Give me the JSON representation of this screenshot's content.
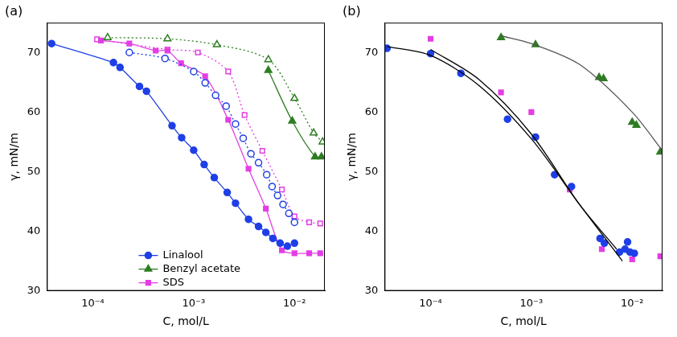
{
  "chart_data": [
    {
      "type": "scatter",
      "title": "(a)",
      "x_label": "C, mol/L",
      "y_label": "γ, mN/m",
      "log": "x",
      "grid": false,
      "legend": "bottom",
      "xlim": [
        3.5e-05,
        0.02
      ],
      "xticks": [
        {
          "value": 0.0001,
          "label": "10⁻⁴"
        },
        {
          "value": 0.001,
          "label": "10⁻³"
        },
        {
          "value": 0.01,
          "label": "10⁻²"
        }
      ],
      "ylim": [
        30,
        75
      ],
      "yticks": [
        30,
        40,
        50,
        60,
        70
      ],
      "series": [
        {
          "name": "Linalool",
          "color": "#1f3fe6",
          "marker": "circle",
          "line_style": "solid",
          "x": [
            3.9e-05,
            0.00016,
            0.000186,
            0.00029,
            0.00034,
            0.00061,
            0.00076,
            0.001,
            0.00127,
            0.0016,
            0.00215,
            0.0026,
            0.0035,
            0.0044,
            0.0052,
            0.0061,
            0.0072,
            0.0085,
            0.01
          ],
          "values": [
            71.5,
            68.3,
            67.5,
            64.3,
            63.5,
            57.7,
            55.7,
            53.6,
            51.2,
            49.0,
            46.5,
            44.7,
            42.0,
            40.8,
            39.8,
            38.8,
            38.0,
            37.5,
            38.0
          ]
        },
        {
          "color": "#1f3fe6",
          "marker": "open_circle",
          "line_style": "dotted",
          "x": [
            0.00023,
            0.00052,
            0.001,
            0.0013,
            0.00165,
            0.0021,
            0.0026,
            0.0031,
            0.0037,
            0.0044,
            0.0053,
            0.006,
            0.0068,
            0.0077,
            0.0088,
            0.01
          ],
          "values": [
            70.0,
            69.0,
            66.8,
            64.9,
            62.8,
            61.0,
            58.0,
            55.6,
            53.0,
            51.5,
            49.5,
            47.5,
            46.0,
            44.5,
            43.0,
            41.5
          ]
        },
        {
          "name": "Benzyl acetate",
          "color": "#2e7d22",
          "marker": "triangle",
          "line_style": "solid",
          "x": [
            0.0055,
            0.0095,
            0.016,
            0.0185
          ],
          "values": [
            67.0,
            58.5,
            52.5,
            52.5
          ]
        },
        {
          "color": "#2e7d22",
          "marker": "open_triangle",
          "line_style": "dotted",
          "x": [
            0.00014,
            0.00055,
            0.0017,
            0.0055,
            0.01,
            0.0155,
            0.019
          ],
          "values": [
            72.5,
            72.3,
            71.3,
            68.8,
            62.3,
            56.5,
            55.0
          ]
        },
        {
          "name": "SDS",
          "color": "#e33ee3",
          "marker": "square",
          "line_style": "solid",
          "x": [
            0.00012,
            0.00023,
            0.00042,
            0.00055,
            0.00075,
            0.0013,
            0.0022,
            0.0035,
            0.0052,
            0.0075,
            0.01,
            0.014,
            0.018
          ],
          "values": [
            72.0,
            71.5,
            70.3,
            70.3,
            68.2,
            66.0,
            58.7,
            50.5,
            43.8,
            36.8,
            36.3,
            36.3,
            36.3
          ]
        },
        {
          "color": "#e33ee3",
          "marker": "open_square",
          "line_style": "dotted",
          "x": [
            0.00011,
            0.00055,
            0.0011,
            0.0022,
            0.0032,
            0.0048,
            0.0075,
            0.01,
            0.014,
            0.018
          ],
          "values": [
            72.2,
            70.5,
            70.0,
            66.8,
            59.5,
            53.5,
            47.0,
            42.5,
            41.5,
            41.3
          ]
        }
      ]
    },
    {
      "type": "scatter",
      "title": "(b)",
      "x_label": "C, mol/L",
      "y_label": "γ, mN/m",
      "log": "x",
      "grid": false,
      "xlim": [
        3.5e-05,
        0.02
      ],
      "xticks": [
        {
          "value": 0.0001,
          "label": "10⁻⁴"
        },
        {
          "value": 0.001,
          "label": "10⁻³"
        },
        {
          "value": 0.01,
          "label": "10⁻²"
        }
      ],
      "ylim": [
        30,
        75
      ],
      "yticks": [
        30,
        40,
        50,
        60,
        70
      ],
      "series": [
        {
          "color": "#000000",
          "marker": "none",
          "line_style": "solid",
          "x": [
            3.7e-05,
            0.0001,
            0.0003,
            0.001,
            0.003,
            0.008
          ],
          "values": [
            71.0,
            69.5,
            64.5,
            55.5,
            44.5,
            35.0
          ]
        },
        {
          "color": "#000000",
          "marker": "none",
          "line_style": "solid",
          "x": [
            0.0001,
            0.0003,
            0.001,
            0.003,
            0.007
          ],
          "values": [
            70.5,
            65.5,
            56.3,
            44.5,
            37.0
          ]
        },
        {
          "color": "#555555",
          "marker": "none",
          "line_style": "solid",
          "x": [
            0.0005,
            0.001,
            0.003,
            0.01,
            0.02
          ],
          "values": [
            72.8,
            71.5,
            68.0,
            60.0,
            53.5
          ]
        },
        {
          "color": "#1f3fe6",
          "marker": "circle",
          "line_style": "none",
          "x": [
            3.7e-05,
            0.0001,
            0.0002,
            0.00058,
            0.0011,
            0.0017,
            0.0025,
            0.0048,
            0.0053,
            0.0075,
            0.0085,
            0.009,
            0.0095,
            0.0105
          ],
          "values": [
            70.7,
            69.8,
            66.5,
            58.8,
            55.8,
            49.5,
            47.5,
            38.8,
            38.0,
            36.5,
            37.0,
            38.2,
            36.5,
            36.3
          ]
        },
        {
          "color": "#e33ee3",
          "marker": "square",
          "line_style": "none",
          "x": [
            0.0001,
            0.0005,
            0.001,
            0.0024,
            0.005,
            0.01,
            0.019
          ],
          "values": [
            72.3,
            63.3,
            60.0,
            47.0,
            37.0,
            35.3,
            35.8
          ]
        },
        {
          "color": "#2e7d22",
          "marker": "triangle",
          "line_style": "none",
          "x": [
            0.0005,
            0.0011,
            0.0047,
            0.0052,
            0.01,
            0.011,
            0.019
          ],
          "values": [
            72.5,
            71.3,
            65.8,
            65.6,
            58.3,
            57.8,
            53.3
          ]
        }
      ]
    }
  ]
}
